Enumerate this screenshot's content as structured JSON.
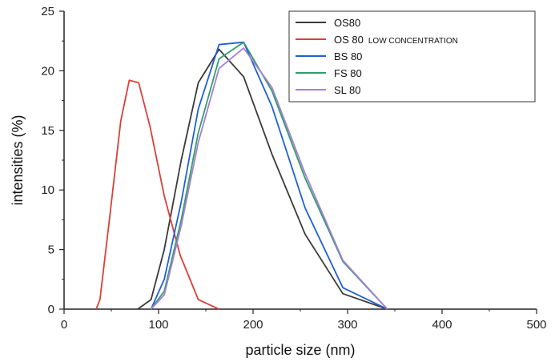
{
  "chart_data": {
    "type": "line",
    "title": "",
    "xlabel": "particle size (nm)",
    "ylabel": "intensities (%)",
    "xlim": [
      0,
      500
    ],
    "ylim": [
      0,
      25
    ],
    "xticks": [
      0,
      100,
      200,
      300,
      400,
      500
    ],
    "yticks": [
      0,
      5,
      10,
      15,
      20,
      25
    ],
    "grid": false,
    "legend_position": "top-right",
    "series": [
      {
        "name": "OS80",
        "color": "#3a3a3a",
        "x": [
          78,
          92,
          106,
          124,
          142,
          164,
          190,
          220,
          255,
          295,
          342
        ],
        "y": [
          0,
          0.8,
          5.0,
          12.5,
          19.0,
          21.8,
          19.5,
          13.0,
          6.3,
          1.3,
          0
        ]
      },
      {
        "name": "OS 80",
        "name_suffix": "LOW CONCENTRATION",
        "color": "#d9403a",
        "x": [
          34,
          38,
          48,
          60,
          69,
          79,
          91,
          106,
          123,
          142,
          164
        ],
        "y": [
          0,
          0.8,
          7.5,
          15.8,
          19.2,
          19.0,
          15.3,
          9.5,
          4.5,
          0.8,
          0
        ]
      },
      {
        "name": "BS 80",
        "color": "#1f5fd6",
        "x": [
          92,
          106,
          124,
          142,
          164,
          190,
          220,
          255,
          295,
          342
        ],
        "y": [
          0,
          2.5,
          9.0,
          16.8,
          22.2,
          22.4,
          17.0,
          8.5,
          1.8,
          0
        ]
      },
      {
        "name": "FS 80",
        "color": "#2f9e6a",
        "x": [
          92,
          106,
          124,
          142,
          164,
          190,
          220,
          255,
          295,
          342
        ],
        "y": [
          0,
          1.5,
          7.5,
          14.8,
          21.0,
          22.4,
          18.3,
          11.0,
          4.0,
          0
        ]
      },
      {
        "name": "SL 80",
        "color": "#a57ed8",
        "x": [
          92,
          106,
          124,
          142,
          164,
          190,
          220,
          255,
          295,
          342
        ],
        "y": [
          0,
          1.2,
          7.0,
          14.0,
          20.2,
          21.9,
          18.6,
          11.4,
          4.1,
          0
        ]
      }
    ]
  }
}
